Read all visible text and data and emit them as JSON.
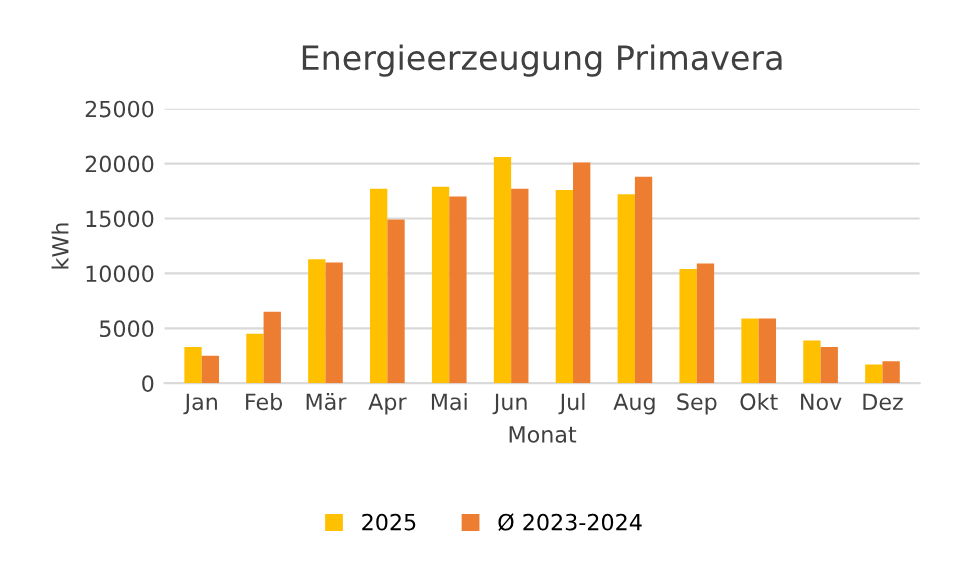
{
  "chart_data": {
    "type": "bar",
    "title": "Energieerzeugung Primavera",
    "xlabel": "Monat",
    "ylabel": "kWh",
    "categories": [
      "Jan",
      "Feb",
      "Mär",
      "Apr",
      "Mai",
      "Jun",
      "Jul",
      "Aug",
      "Sep",
      "Okt",
      "Nov",
      "Dez"
    ],
    "series": [
      {
        "name": "2025",
        "color": "#ffc000",
        "values": [
          3300,
          4500,
          11300,
          17700,
          17900,
          20600,
          17600,
          17200,
          10400,
          5900,
          3900,
          1700
        ]
      },
      {
        "name": "Ø 2023-2024",
        "color": "#ed7d31",
        "values": [
          2500,
          6500,
          11000,
          14900,
          17000,
          17700,
          20100,
          18800,
          10900,
          5900,
          3300,
          2000
        ]
      }
    ],
    "ylim": [
      0,
      25000
    ],
    "yticks": [
      0,
      5000,
      10000,
      15000,
      20000,
      25000
    ],
    "grid": "y",
    "legend": "bottom"
  }
}
